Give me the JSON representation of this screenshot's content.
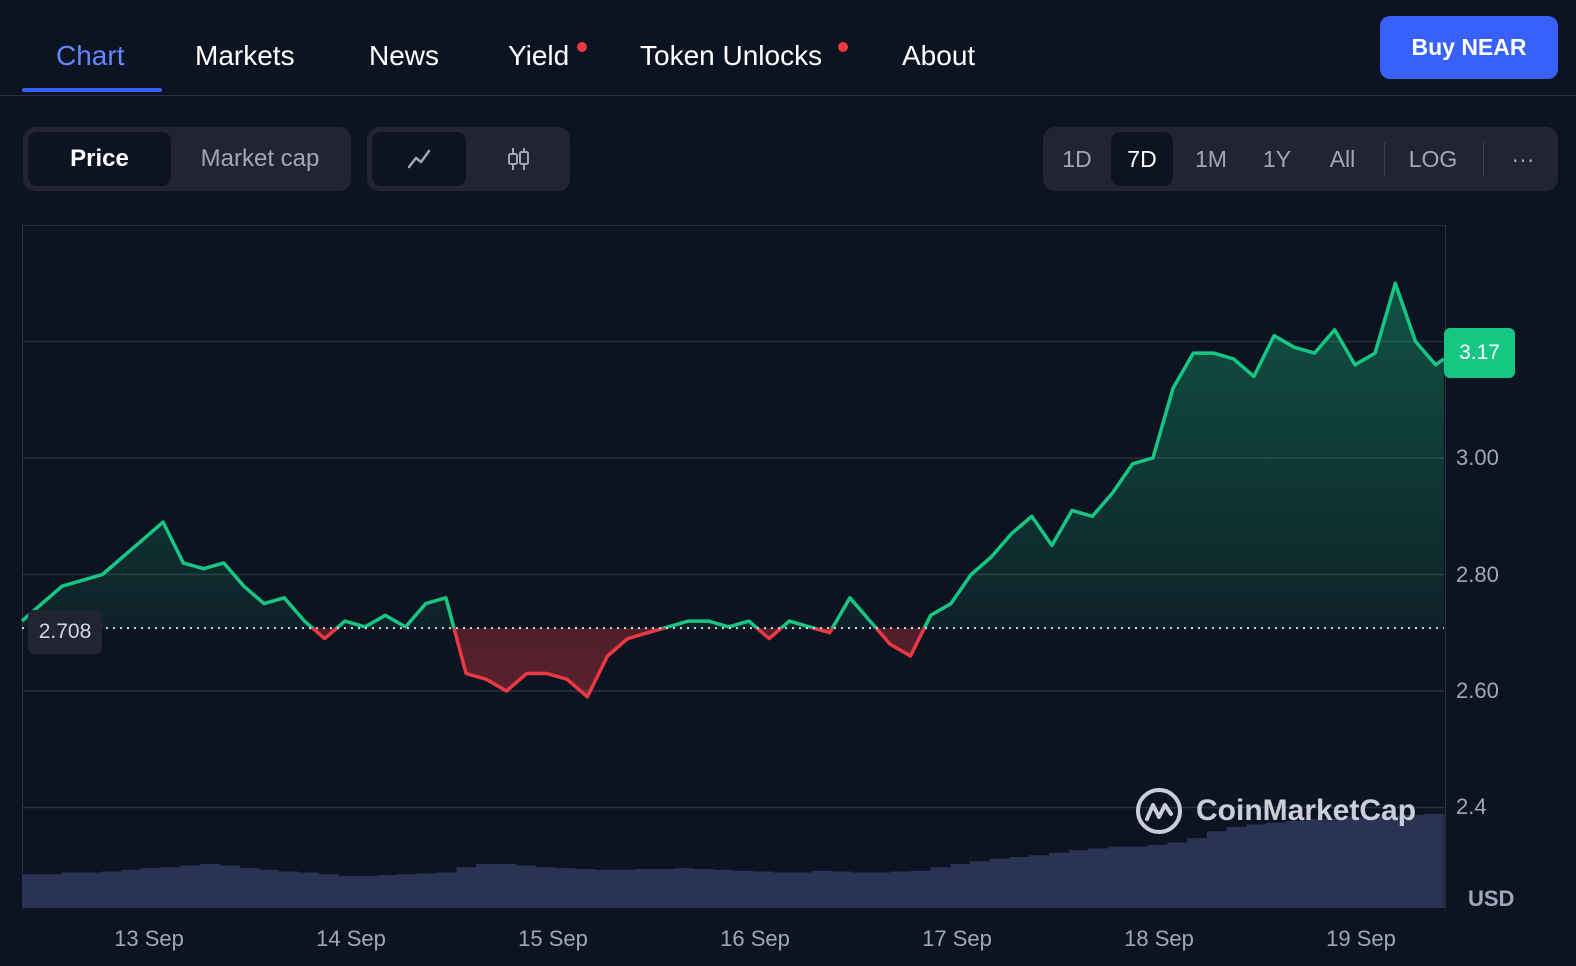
{
  "nav": {
    "tabs": [
      {
        "label": "Chart",
        "active": true,
        "dot": false
      },
      {
        "label": "Markets",
        "active": false,
        "dot": false
      },
      {
        "label": "News",
        "active": false,
        "dot": false
      },
      {
        "label": "Yield",
        "active": false,
        "dot": true
      },
      {
        "label": "Token Unlocks",
        "active": false,
        "dot": true
      },
      {
        "label": "About",
        "active": false,
        "dot": false
      }
    ],
    "buy_label": "Buy NEAR"
  },
  "controls": {
    "metric": [
      "Price",
      "Market cap"
    ],
    "metric_selected": "Price",
    "chart_style_icons": [
      "line-chart-icon",
      "candlestick-icon"
    ],
    "ranges": [
      "1D",
      "7D",
      "1M",
      "1Y",
      "All"
    ],
    "range_selected": "7D",
    "log_label": "LOG",
    "more_label": "···"
  },
  "chart": {
    "current_price": "3.17",
    "baseline_label": "2.708",
    "currency": "USD",
    "watermark": "CoinMarketCap",
    "colors": {
      "up": "#16c784",
      "down": "#ea3943",
      "volume": "#2b3354",
      "accent": "#3861fb"
    }
  },
  "chart_data": {
    "type": "area",
    "xlabels": [
      "13 Sep",
      "14 Sep",
      "15 Sep",
      "16 Sep",
      "17 Sep",
      "18 Sep",
      "19 Sep"
    ],
    "ytick_labels": [
      "2.4",
      "2.60",
      "2.80",
      "3.00"
    ],
    "yticks": [
      2.4,
      2.6,
      2.8,
      3.0
    ],
    "ylim": [
      2.2,
      3.4
    ],
    "baseline": 2.708,
    "current": 3.17,
    "grid": true,
    "x_days": [
      0,
      0.1,
      0.2,
      0.3,
      0.4,
      0.5,
      0.6,
      0.7,
      0.8,
      0.9,
      1.0,
      1.1,
      1.2,
      1.3,
      1.4,
      1.5,
      1.6,
      1.7,
      1.8,
      1.9,
      2.0,
      2.1,
      2.2,
      2.3,
      2.4,
      2.5,
      2.6,
      2.7,
      2.8,
      2.9,
      3.0,
      3.1,
      3.2,
      3.3,
      3.4,
      3.5,
      3.6,
      3.7,
      3.8,
      3.9,
      4.0,
      4.1,
      4.2,
      4.3,
      4.4,
      4.5,
      4.6,
      4.7,
      4.8,
      4.9,
      5.0,
      5.1,
      5.2,
      5.3,
      5.4,
      5.5,
      5.6,
      5.7,
      5.8,
      5.9,
      6.0,
      6.1,
      6.2,
      6.3,
      6.4,
      6.5,
      6.6,
      6.7,
      6.8,
      6.9,
      7.0,
      7.04
    ],
    "prices": [
      2.72,
      2.75,
      2.78,
      2.79,
      2.8,
      2.83,
      2.86,
      2.89,
      2.82,
      2.81,
      2.82,
      2.78,
      2.75,
      2.76,
      2.72,
      2.69,
      2.72,
      2.71,
      2.73,
      2.71,
      2.75,
      2.76,
      2.63,
      2.62,
      2.6,
      2.63,
      2.63,
      2.62,
      2.59,
      2.66,
      2.69,
      2.7,
      2.71,
      2.72,
      2.72,
      2.71,
      2.72,
      2.69,
      2.72,
      2.71,
      2.7,
      2.76,
      2.72,
      2.68,
      2.66,
      2.73,
      2.75,
      2.8,
      2.83,
      2.87,
      2.9,
      2.85,
      2.91,
      2.9,
      2.94,
      2.99,
      3.0,
      3.12,
      3.18,
      3.18,
      3.17,
      3.14,
      3.21,
      3.19,
      3.18,
      3.22,
      3.16,
      3.18,
      3.3,
      3.2,
      3.16,
      3.17
    ],
    "volume_relative": [
      0.3,
      0.3,
      0.32,
      0.32,
      0.33,
      0.35,
      0.37,
      0.38,
      0.4,
      0.42,
      0.4,
      0.37,
      0.35,
      0.33,
      0.32,
      0.3,
      0.28,
      0.28,
      0.29,
      0.3,
      0.31,
      0.32,
      0.38,
      0.42,
      0.42,
      0.4,
      0.38,
      0.37,
      0.36,
      0.35,
      0.35,
      0.36,
      0.36,
      0.37,
      0.36,
      0.35,
      0.34,
      0.33,
      0.32,
      0.32,
      0.34,
      0.33,
      0.32,
      0.32,
      0.33,
      0.34,
      0.38,
      0.42,
      0.45,
      0.48,
      0.5,
      0.52,
      0.55,
      0.58,
      0.6,
      0.62,
      0.62,
      0.64,
      0.67,
      0.72,
      0.8,
      0.85,
      0.88,
      0.9,
      0.92,
      0.94,
      0.95,
      0.96,
      0.97,
      0.98,
      0.99,
      1.0
    ]
  }
}
